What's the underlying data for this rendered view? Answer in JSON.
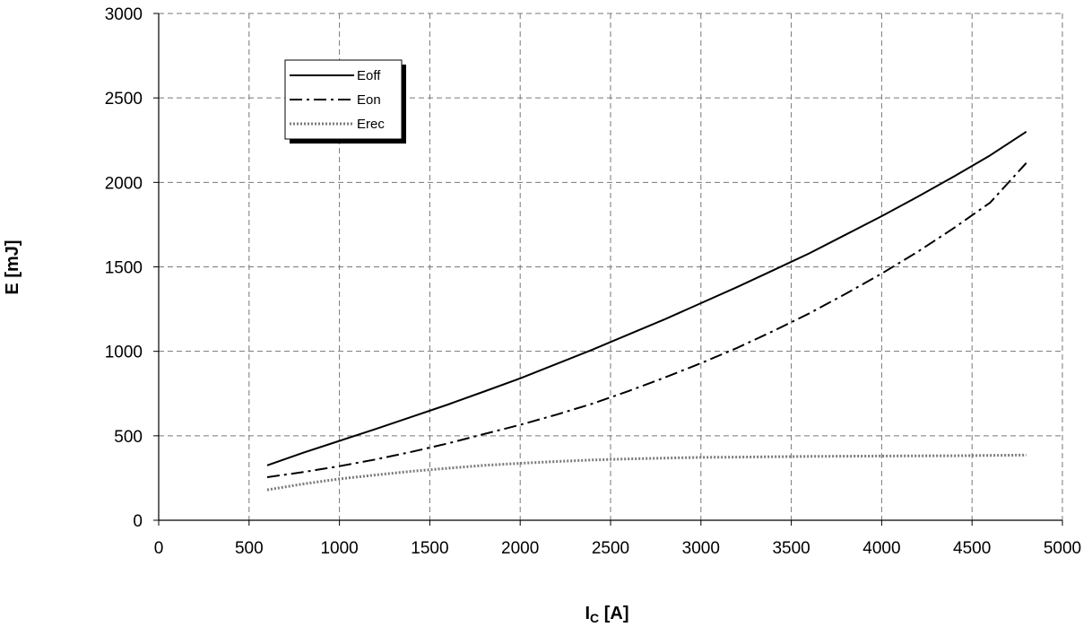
{
  "chart_data": {
    "type": "line",
    "xlabel_main": "I",
    "xlabel_sub": "C",
    "xlabel_unit": " [A]",
    "ylabel": "E [mJ]",
    "xlim": [
      0,
      5000
    ],
    "ylim": [
      0,
      3000
    ],
    "x_ticks": [
      "0",
      "500",
      "1000",
      "1500",
      "2000",
      "2500",
      "3000",
      "3500",
      "4000",
      "4500",
      "5000"
    ],
    "y_ticks": [
      "0",
      "500",
      "1000",
      "1500",
      "2000",
      "2500",
      "3000"
    ],
    "grid": true,
    "legend_position": "top-left",
    "x": [
      600,
      800,
      1000,
      1200,
      1400,
      1600,
      1800,
      2000,
      2200,
      2400,
      2600,
      2800,
      3000,
      3200,
      3400,
      3600,
      3800,
      4000,
      4200,
      4400,
      4600,
      4800
    ],
    "series": [
      {
        "name": "Eoff",
        "style": "solid",
        "color": "#000000",
        "values": [
          325,
          400,
          470,
          540,
          612,
          685,
          762,
          840,
          925,
          1010,
          1100,
          1190,
          1285,
          1380,
          1480,
          1580,
          1690,
          1800,
          1915,
          2035,
          2160,
          2300
        ]
      },
      {
        "name": "Eon",
        "style": "dashdot",
        "color": "#000000",
        "values": [
          255,
          285,
          320,
          360,
          405,
          455,
          510,
          565,
          625,
          690,
          765,
          845,
          930,
          1020,
          1120,
          1225,
          1340,
          1460,
          1590,
          1730,
          1880,
          2115
        ]
      },
      {
        "name": "Erec",
        "style": "dotted",
        "color": "#7a7a7a",
        "values": [
          180,
          215,
          245,
          268,
          290,
          308,
          325,
          337,
          348,
          357,
          363,
          368,
          372,
          374,
          376,
          378,
          379,
          380,
          381,
          382,
          384,
          386
        ]
      }
    ]
  }
}
